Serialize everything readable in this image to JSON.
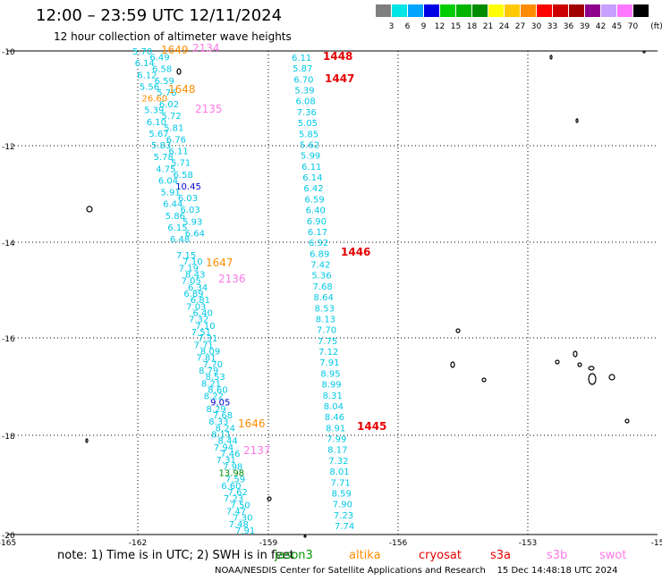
{
  "title": "12:00 – 23:59 UTC 12/11/2024",
  "subtitle": "12 hour collection of altimeter wave heights",
  "legend": {
    "unit": "(ft)",
    "bins": [
      {
        "label": "3",
        "color": "#7f7f7f"
      },
      {
        "label": "6",
        "color": "#00e5e5"
      },
      {
        "label": "9",
        "color": "#00a5ff"
      },
      {
        "label": "12",
        "color": "#0000e6"
      },
      {
        "label": "15",
        "color": "#00cc00"
      },
      {
        "label": "18",
        "color": "#00b400"
      },
      {
        "label": "21",
        "color": "#008c00"
      },
      {
        "label": "24",
        "color": "#ffff00"
      },
      {
        "label": "27",
        "color": "#ffc800"
      },
      {
        "label": "30",
        "color": "#ff8c00"
      },
      {
        "label": "33",
        "color": "#ff0000"
      },
      {
        "label": "36",
        "color": "#cc0000"
      },
      {
        "label": "39",
        "color": "#a00000"
      },
      {
        "label": "42",
        "color": "#8c008c"
      },
      {
        "label": "45",
        "color": "#c8a0ff"
      },
      {
        "label": "70",
        "color": "#ff78ff"
      },
      {
        "label": "",
        "color": "#000000"
      }
    ]
  },
  "axes": {
    "lat_labels": [
      "-10",
      "-12",
      "-14",
      "-16",
      "-18",
      "-20"
    ],
    "lon_labels": [
      "-165",
      "-162",
      "-159",
      "-156",
      "-153",
      "-15"
    ]
  },
  "colors": {
    "cyan": "#00c8e6",
    "blue": "#0000cc",
    "green": "#008c00",
    "orange": "#ff8c00",
    "red": "#e60000",
    "pink": "#ff78e6",
    "olive": "#009600"
  },
  "track_labels": [
    {
      "t": "1649",
      "c": "orange"
    },
    {
      "t": "2134",
      "c": "pink"
    },
    {
      "t": "1648",
      "c": "orange"
    },
    {
      "t": "2135",
      "c": "pink"
    },
    {
      "t": "1647",
      "c": "orange"
    },
    {
      "t": "2136",
      "c": "pink"
    },
    {
      "t": "1646",
      "c": "orange"
    },
    {
      "t": "2137",
      "c": "pink"
    },
    {
      "t": "1448",
      "c": "red"
    },
    {
      "t": "1447",
      "c": "red"
    },
    {
      "t": "1446",
      "c": "red"
    },
    {
      "t": "1445",
      "c": "red"
    }
  ],
  "track_a_values": [
    {
      "t": "5.70",
      "c": "cyan"
    },
    {
      "t": "6.49",
      "c": "cyan"
    },
    {
      "t": "6.14",
      "c": "cyan"
    },
    {
      "t": "6.58",
      "c": "cyan"
    },
    {
      "t": "6.12",
      "c": "cyan"
    },
    {
      "t": "6.59",
      "c": "cyan"
    },
    {
      "t": "5.56",
      "c": "cyan"
    },
    {
      "t": "5.76",
      "c": "cyan"
    },
    {
      "t": "26.60",
      "c": "orange"
    },
    {
      "t": "6.02",
      "c": "cyan"
    },
    {
      "t": "5.39",
      "c": "cyan"
    },
    {
      "t": "5.72",
      "c": "cyan"
    },
    {
      "t": "6.10",
      "c": "cyan"
    },
    {
      "t": "5.81",
      "c": "cyan"
    },
    {
      "t": "5.67",
      "c": "cyan"
    },
    {
      "t": "6.76",
      "c": "cyan"
    },
    {
      "t": "5.83",
      "c": "cyan"
    },
    {
      "t": "6.11",
      "c": "cyan"
    },
    {
      "t": "5.78",
      "c": "cyan"
    },
    {
      "t": "5.71",
      "c": "cyan"
    },
    {
      "t": "4.75",
      "c": "cyan"
    },
    {
      "t": "6.58",
      "c": "cyan"
    },
    {
      "t": "6.04",
      "c": "cyan"
    },
    {
      "t": "10.45",
      "c": "blue"
    },
    {
      "t": "5.91",
      "c": "cyan"
    },
    {
      "t": "6.03",
      "c": "cyan"
    },
    {
      "t": "6.44",
      "c": "cyan"
    },
    {
      "t": "6.03",
      "c": "cyan"
    },
    {
      "t": "5.86",
      "c": "cyan"
    },
    {
      "t": "5.93",
      "c": "cyan"
    },
    {
      "t": "6.15",
      "c": "cyan"
    },
    {
      "t": "6.64",
      "c": "cyan"
    },
    {
      "t": "6.48",
      "c": "cyan"
    }
  ],
  "track_b_values": [
    {
      "t": "7.15",
      "c": "cyan"
    },
    {
      "t": "7.10",
      "c": "cyan"
    },
    {
      "t": "7.19",
      "c": "cyan"
    },
    {
      "t": "8.43",
      "c": "cyan"
    },
    {
      "t": "7.05",
      "c": "cyan"
    },
    {
      "t": "6.34",
      "c": "cyan"
    },
    {
      "t": "6.89",
      "c": "cyan"
    },
    {
      "t": "6.81",
      "c": "cyan"
    },
    {
      "t": "7.03",
      "c": "cyan"
    },
    {
      "t": "6.40",
      "c": "cyan"
    },
    {
      "t": "7.32",
      "c": "cyan"
    },
    {
      "t": "7.10",
      "c": "cyan"
    },
    {
      "t": "7.51",
      "c": "cyan"
    },
    {
      "t": "7.31",
      "c": "cyan"
    },
    {
      "t": "7.71",
      "c": "cyan"
    },
    {
      "t": "8.09",
      "c": "cyan"
    },
    {
      "t": "7.81",
      "c": "cyan"
    },
    {
      "t": "7.70",
      "c": "cyan"
    },
    {
      "t": "8.79",
      "c": "cyan"
    },
    {
      "t": "8.53",
      "c": "cyan"
    },
    {
      "t": "8.21",
      "c": "cyan"
    },
    {
      "t": "8.60",
      "c": "cyan"
    },
    {
      "t": "8.22",
      "c": "cyan"
    },
    {
      "t": "9.05",
      "c": "blue"
    },
    {
      "t": "8.29",
      "c": "cyan"
    },
    {
      "t": "7.68",
      "c": "cyan"
    },
    {
      "t": "8.33",
      "c": "cyan"
    },
    {
      "t": "8.24",
      "c": "cyan"
    },
    {
      "t": "8.11",
      "c": "cyan"
    },
    {
      "t": "8.44",
      "c": "cyan"
    },
    {
      "t": "7.94",
      "c": "cyan"
    },
    {
      "t": "7.46",
      "c": "cyan"
    },
    {
      "t": "7.31",
      "c": "cyan"
    },
    {
      "t": "7.98",
      "c": "cyan"
    },
    {
      "t": "13.98",
      "c": "green"
    },
    {
      "t": "7.59",
      "c": "cyan"
    },
    {
      "t": "6.60",
      "c": "cyan"
    },
    {
      "t": "7.62",
      "c": "cyan"
    },
    {
      "t": "7.23",
      "c": "cyan"
    },
    {
      "t": "7.50",
      "c": "cyan"
    },
    {
      "t": "7.47",
      "c": "cyan"
    },
    {
      "t": "7.30",
      "c": "cyan"
    },
    {
      "t": "7.48",
      "c": "cyan"
    },
    {
      "t": "7.91",
      "c": "cyan"
    }
  ],
  "track_c_values": [
    {
      "t": "6.11",
      "c": "cyan"
    },
    {
      "t": "5.87",
      "c": "cyan"
    },
    {
      "t": "6.70",
      "c": "cyan"
    },
    {
      "t": "5.39",
      "c": "cyan"
    },
    {
      "t": "6.08",
      "c": "cyan"
    },
    {
      "t": "7.36",
      "c": "cyan"
    },
    {
      "t": "5.05",
      "c": "cyan"
    },
    {
      "t": "5.85",
      "c": "cyan"
    },
    {
      "t": "5.62",
      "c": "cyan"
    },
    {
      "t": "5.99",
      "c": "cyan"
    },
    {
      "t": "6.11",
      "c": "cyan"
    },
    {
      "t": "6.14",
      "c": "cyan"
    },
    {
      "t": "6.42",
      "c": "cyan"
    },
    {
      "t": "6.59",
      "c": "cyan"
    },
    {
      "t": "6.40",
      "c": "cyan"
    },
    {
      "t": "6.90",
      "c": "cyan"
    },
    {
      "t": "6.17",
      "c": "cyan"
    },
    {
      "t": "6.92",
      "c": "cyan"
    },
    {
      "t": "6.89",
      "c": "cyan"
    },
    {
      "t": "7.42",
      "c": "cyan"
    },
    {
      "t": "5.36",
      "c": "cyan"
    },
    {
      "t": "7.68",
      "c": "cyan"
    },
    {
      "t": "8.64",
      "c": "cyan"
    },
    {
      "t": "8.53",
      "c": "cyan"
    },
    {
      "t": "8.13",
      "c": "cyan"
    },
    {
      "t": "7.70",
      "c": "cyan"
    },
    {
      "t": "7.75",
      "c": "cyan"
    },
    {
      "t": "7.12",
      "c": "cyan"
    },
    {
      "t": "7.91",
      "c": "cyan"
    },
    {
      "t": "8.95",
      "c": "cyan"
    },
    {
      "t": "8.99",
      "c": "cyan"
    },
    {
      "t": "8.31",
      "c": "cyan"
    },
    {
      "t": "8.04",
      "c": "cyan"
    },
    {
      "t": "8.46",
      "c": "cyan"
    },
    {
      "t": "8.91",
      "c": "cyan"
    },
    {
      "t": "7.99",
      "c": "cyan"
    },
    {
      "t": "8.17",
      "c": "cyan"
    },
    {
      "t": "7.32",
      "c": "cyan"
    },
    {
      "t": "8.01",
      "c": "cyan"
    },
    {
      "t": "7.71",
      "c": "cyan"
    },
    {
      "t": "8.59",
      "c": "cyan"
    },
    {
      "t": "7.90",
      "c": "cyan"
    },
    {
      "t": "7.23",
      "c": "cyan"
    },
    {
      "t": "7.74",
      "c": "cyan"
    }
  ],
  "footer": {
    "note": "note:  1) Time is in UTC; 2) SWH is in feet",
    "satellites": [
      {
        "t": "jason3",
        "c": "olive"
      },
      {
        "t": "altika",
        "c": "orange"
      },
      {
        "t": "cryosat",
        "c": "red"
      },
      {
        "t": "s3a",
        "c": "red"
      },
      {
        "t": "s3b",
        "c": "pink"
      },
      {
        "t": "swot",
        "c": "pink"
      }
    ],
    "credit": "NOAA/NESDIS Center for Satellite Applications and Research    15 Dec 14:48:18 UTC 2024"
  }
}
